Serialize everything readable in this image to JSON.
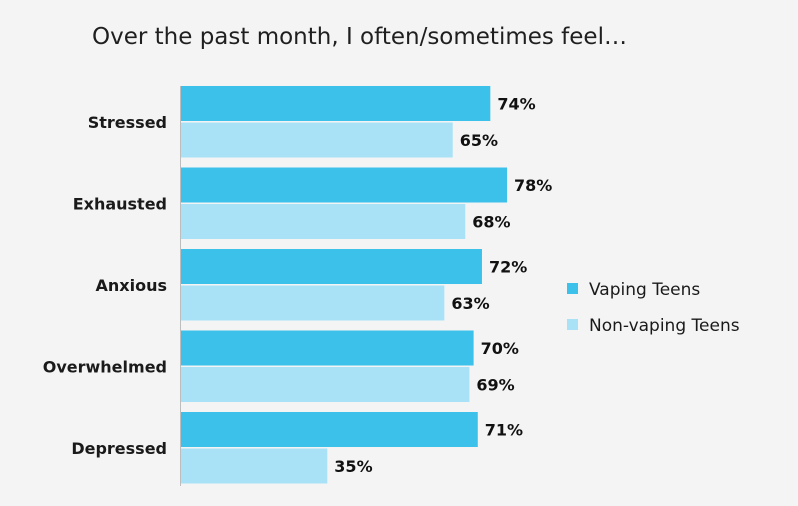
{
  "chart_data": {
    "type": "bar",
    "orientation": "horizontal",
    "title": "Over the past month, I often/sometimes feel…",
    "categories": [
      "Stressed",
      "Exhausted",
      "Anxious",
      "Overwhelmed",
      "Depressed"
    ],
    "series": [
      {
        "name": "Vaping Teens",
        "values": [
          74,
          78,
          72,
          70,
          71
        ],
        "color": "#3bc1ea"
      },
      {
        "name": "Non-vaping Teens",
        "values": [
          65,
          68,
          63,
          69,
          35
        ],
        "color": "#a9e2f7"
      }
    ],
    "value_suffix": "%",
    "xlim": [
      0,
      100
    ],
    "xlabel": "",
    "ylabel": "",
    "grid": false,
    "legend_position": "right"
  }
}
